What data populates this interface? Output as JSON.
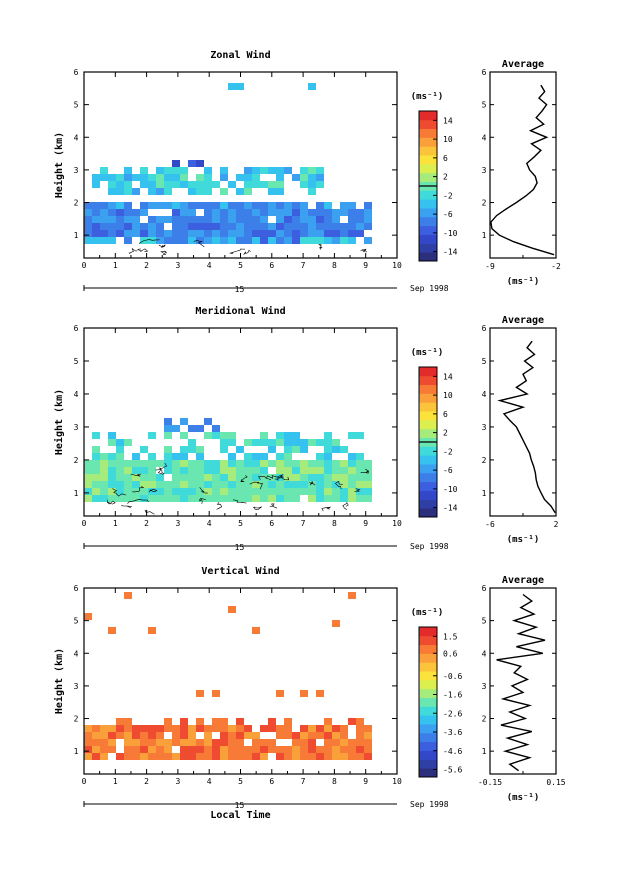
{
  "figure": {
    "date_label": "Sep 1998",
    "day_label": "15",
    "xlabel": "Local Time",
    "ylabel": "Height (km)",
    "unit": "(ms⁻¹)",
    "avg_title": "Average"
  },
  "chart_data": [
    {
      "type": "heatmap",
      "title": "Zonal Wind",
      "xlabel": "",
      "ylabel": "Height (km)",
      "xlim": [
        0,
        10
      ],
      "ylim": [
        0.3,
        6
      ],
      "xticks": [
        0,
        1,
        2,
        3,
        4,
        5,
        6,
        7,
        8,
        9,
        10
      ],
      "yticks": [
        1,
        2,
        3,
        4,
        5,
        6
      ],
      "colorbar": {
        "ticks": [
          14,
          10,
          6,
          2,
          -2,
          -6,
          -10,
          -14
        ],
        "range": [
          -16,
          16
        ],
        "zero_line": 0
      },
      "average_profile": {
        "title": "Average",
        "xlabel": "(ms⁻¹)",
        "xlim": [
          -9,
          -2
        ],
        "xticks": [
          "-9",
          "-2"
        ],
        "heights": [
          0.4,
          0.6,
          0.8,
          1.0,
          1.2,
          1.4,
          1.6,
          1.8,
          2.0,
          2.2,
          2.4,
          2.6,
          2.8,
          3.0,
          3.2,
          3.4,
          3.6,
          3.8,
          4.0,
          4.2,
          4.4,
          4.6,
          4.8,
          5.0,
          5.2,
          5.4,
          5.6
        ],
        "values": [
          -2.2,
          -4.5,
          -6.5,
          -8.0,
          -8.8,
          -8.9,
          -8.3,
          -7.3,
          -6.2,
          -5.2,
          -4.4,
          -4.0,
          -4.2,
          -4.8,
          -5.1,
          -4.3,
          -3.6,
          -4.6,
          -3.0,
          -4.7,
          -3.3,
          -4.1,
          -3.5,
          -3.0,
          -3.8,
          -3.2,
          -3.6
        ]
      }
    },
    {
      "type": "heatmap",
      "title": "Meridional Wind",
      "xlabel": "",
      "ylabel": "Height (km)",
      "xlim": [
        0,
        10
      ],
      "ylim": [
        0.3,
        6
      ],
      "xticks": [
        0,
        1,
        2,
        3,
        4,
        5,
        6,
        7,
        8,
        9,
        10
      ],
      "yticks": [
        1,
        2,
        3,
        4,
        5,
        6
      ],
      "colorbar": {
        "ticks": [
          14,
          10,
          6,
          2,
          -2,
          -6,
          -10,
          -14
        ],
        "range": [
          -16,
          16
        ],
        "zero_line": 0
      },
      "average_profile": {
        "title": "Average",
        "xlabel": "(ms⁻¹)",
        "xlim": [
          -6,
          2
        ],
        "xticks": [
          "-6",
          "2"
        ],
        "heights": [
          0.4,
          0.6,
          0.8,
          1.0,
          1.2,
          1.4,
          1.6,
          1.8,
          2.0,
          2.2,
          2.4,
          2.6,
          2.8,
          3.0,
          3.2,
          3.4,
          3.6,
          3.8,
          4.0,
          4.2,
          4.4,
          4.6,
          4.8,
          5.0,
          5.2,
          5.4,
          5.6
        ],
        "values": [
          1.9,
          1.4,
          0.6,
          0.2,
          -0.2,
          -0.4,
          -0.5,
          -0.7,
          -1.0,
          -1.2,
          -1.6,
          -2.0,
          -2.4,
          -2.8,
          -3.6,
          -4.3,
          -2.0,
          -4.8,
          -1.5,
          -2.8,
          -1.6,
          -2.0,
          -0.8,
          -1.8,
          -0.6,
          -1.5,
          -0.9
        ]
      }
    },
    {
      "type": "heatmap",
      "title": "Vertical Wind",
      "xlabel": "Local Time",
      "ylabel": "Height (km)",
      "xlim": [
        0,
        10
      ],
      "ylim": [
        0.3,
        6
      ],
      "xticks": [
        0,
        1,
        2,
        3,
        4,
        5,
        6,
        7,
        8,
        9,
        10
      ],
      "yticks": [
        1,
        2,
        3,
        4,
        5,
        6
      ],
      "colorbar": {
        "ticks": [
          1.5,
          0.6,
          -0.6,
          -1.6,
          -2.6,
          -3.6,
          -4.6,
          -5.6
        ],
        "range": [
          -6.0,
          2.0
        ]
      },
      "average_profile": {
        "title": "Average",
        "xlabel": "(ms⁻¹)",
        "xlim": [
          -0.15,
          0.15
        ],
        "xticks": [
          "-0.15",
          "0.15"
        ],
        "heights": [
          0.4,
          0.6,
          0.8,
          1.0,
          1.2,
          1.4,
          1.6,
          1.8,
          2.0,
          2.2,
          2.4,
          2.6,
          2.8,
          3.0,
          3.2,
          3.4,
          3.6,
          3.8,
          4.0,
          4.2,
          4.4,
          4.6,
          4.8,
          5.0,
          5.2,
          5.4,
          5.6,
          5.8
        ],
        "values": [
          -0.02,
          -0.06,
          0.03,
          -0.08,
          0.02,
          -0.07,
          0.04,
          -0.1,
          0.01,
          -0.06,
          0.03,
          -0.09,
          0.0,
          -0.05,
          0.02,
          -0.04,
          -0.01,
          -0.12,
          0.09,
          -0.03,
          0.1,
          -0.02,
          0.06,
          -0.04,
          0.05,
          -0.01,
          0.04,
          0.0
        ]
      }
    }
  ]
}
